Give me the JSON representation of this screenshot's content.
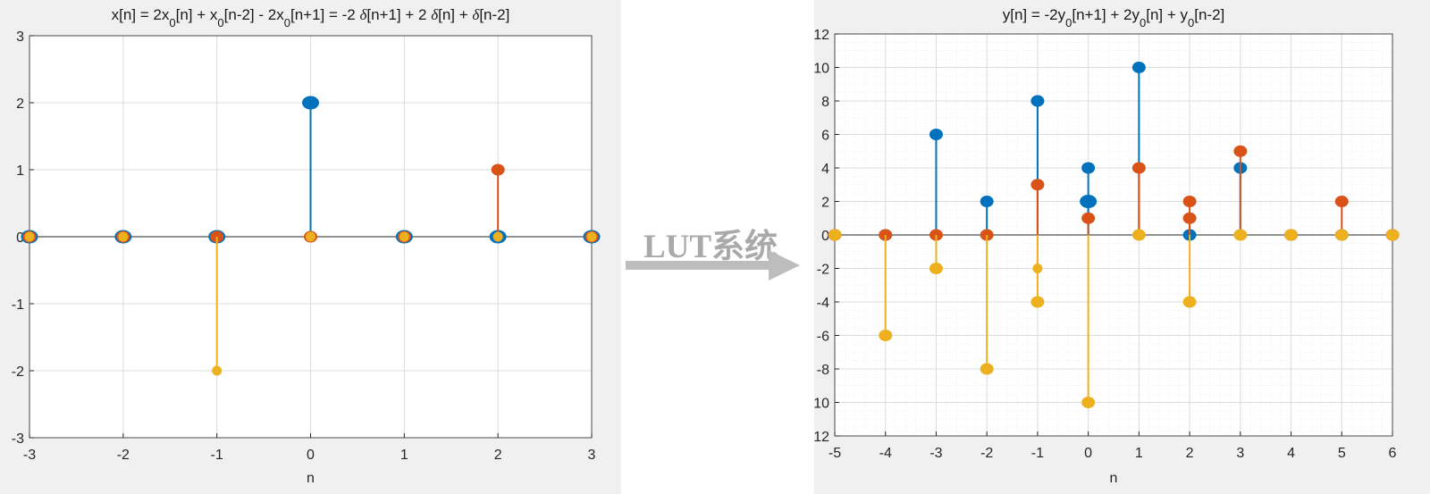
{
  "annotation": {
    "label": "LUT系统"
  },
  "chart_data": [
    {
      "type": "stem",
      "title_parts": [
        {
          "t": "x[n] = 2x"
        },
        {
          "t": "0",
          "sub": true
        },
        {
          "t": "[n] + x"
        },
        {
          "t": "0",
          "sub": true
        },
        {
          "t": "[n-2] - 2x"
        },
        {
          "t": "0",
          "sub": true
        },
        {
          "t": "[n+1] =  -2 "
        },
        {
          "t": "δ",
          "italic": true
        },
        {
          "t": "[n+1] + 2 "
        },
        {
          "t": "δ",
          "italic": true
        },
        {
          "t": "[n] + "
        },
        {
          "t": "δ",
          "italic": true
        },
        {
          "t": "[n-2]"
        }
      ],
      "xlabel": "n",
      "xlim": [
        -3,
        3
      ],
      "ylim": [
        -3,
        3
      ],
      "xticks": [
        -3,
        -2,
        -1,
        0,
        1,
        2,
        3
      ],
      "yticks": [
        -3,
        -2,
        -1,
        0,
        1,
        2,
        3
      ],
      "grid": true,
      "minor_grid": false,
      "series": [
        {
          "color": "#0072bd",
          "marker": "large",
          "x": [
            -3,
            -2,
            -1,
            0,
            1,
            2,
            3
          ],
          "y": [
            0,
            0,
            0,
            2,
            0,
            0,
            0
          ]
        },
        {
          "color": "#d95319",
          "marker": "medium",
          "x": [
            -3,
            -2,
            -1,
            0,
            1,
            2,
            3
          ],
          "y": [
            0,
            0,
            0,
            0,
            0,
            1,
            0
          ]
        },
        {
          "color": "#edb120",
          "marker": "small",
          "x": [
            -3,
            -2,
            -1,
            0,
            1,
            2,
            3
          ],
          "y": [
            0,
            0,
            -2,
            0,
            0,
            0,
            0
          ]
        }
      ]
    },
    {
      "type": "stem",
      "title_parts": [
        {
          "t": "y[n] = -2y"
        },
        {
          "t": "0",
          "sub": true
        },
        {
          "t": "[n+1] + 2y"
        },
        {
          "t": "0",
          "sub": true
        },
        {
          "t": "[n] + y"
        },
        {
          "t": "0",
          "sub": true
        },
        {
          "t": "[n-2]"
        }
      ],
      "xlabel": "n",
      "xlim": [
        -5,
        6
      ],
      "ylim": [
        -12,
        12
      ],
      "xticks": [
        -5,
        -4,
        -3,
        -2,
        -1,
        0,
        1,
        2,
        3,
        4,
        5,
        6
      ],
      "yticks": [
        -12,
        -10,
        -8,
        -6,
        -4,
        -2,
        0,
        2,
        4,
        6,
        8,
        10,
        12
      ],
      "grid": true,
      "minor_grid": true,
      "series": [
        {
          "color": "#0072bd",
          "marker": "large",
          "x": [
            0
          ],
          "y": [
            2
          ]
        },
        {
          "color": "#0072bd",
          "marker": "medium",
          "x": [
            -5,
            -4,
            -3,
            -2,
            -1,
            0,
            1,
            2,
            3,
            4,
            5,
            6
          ],
          "y": [
            0,
            0,
            6,
            2,
            8,
            4,
            10,
            0,
            4,
            0,
            0,
            0
          ]
        },
        {
          "color": "#d95319",
          "marker": "medium",
          "x": [
            -5,
            -4,
            -3,
            -2,
            -1,
            0,
            1,
            2,
            3,
            4,
            5,
            6
          ],
          "y": [
            0,
            0,
            0,
            0,
            3,
            1,
            4,
            2,
            5,
            0,
            2,
            0
          ]
        },
        {
          "color": "#d95319",
          "marker": "medium",
          "x": [
            2
          ],
          "y": [
            1
          ]
        },
        {
          "color": "#edb120",
          "marker": "medium",
          "x": [
            -5,
            -4,
            -3,
            -2,
            -1,
            0,
            1,
            2,
            3,
            4,
            5,
            6
          ],
          "y": [
            0,
            -6,
            -2,
            -8,
            -4,
            -10,
            0,
            -4,
            0,
            0,
            0,
            0
          ]
        },
        {
          "color": "#edb120",
          "marker": "small",
          "x": [
            -1
          ],
          "y": [
            -2
          ]
        }
      ]
    }
  ]
}
